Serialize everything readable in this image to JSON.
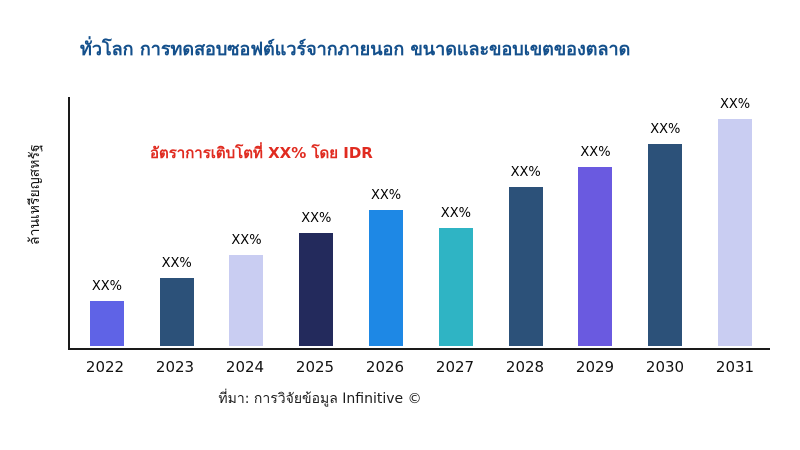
{
  "title": "ทั่วโลก การทดสอบซอฟต์แวร์จากภายนอก ขนาดและขอบเขตของตลาด",
  "y_axis_label": "ล้านเหรียญสหรัฐ",
  "annotation": {
    "text": "อัตราการเติบโตที่ XX% โดย IDR",
    "color": "#e02b20"
  },
  "caption": "ที่มา: การวิจัยข้อมูล Infinitive ©",
  "colors": {
    "title": "#14508c",
    "axis": "#1a1a1a"
  },
  "chart_data": {
    "type": "bar",
    "title": "ทั่วโลก การทดสอบซอฟต์แวร์จากภายนอก ขนาดและขอบเขตของตลาด",
    "categories": [
      "2022",
      "2023",
      "2024",
      "2025",
      "2026",
      "2027",
      "2028",
      "2029",
      "2030",
      "2031"
    ],
    "values": [
      20,
      30,
      40,
      50,
      60,
      52,
      70,
      79,
      89,
      100
    ],
    "value_labels": [
      "XX%",
      "XX%",
      "XX%",
      "XX%",
      "XX%",
      "XX%",
      "XX%",
      "XX%",
      "XX%",
      "XX%"
    ],
    "bar_colors": [
      "#5f63e6",
      "#2c5179",
      "#c9cdf2",
      "#232a5c",
      "#1e88e5",
      "#2fb4c4",
      "#2c5179",
      "#6a5ae0",
      "#2c5179",
      "#c9cdf2"
    ],
    "xlabel": "",
    "ylabel": "ล้านเหรียญสหรัฐ",
    "ylim": [
      0,
      100
    ],
    "grid": false,
    "legend": "none",
    "annotation": "อัตราการเติบโตที่ XX% โดย IDR",
    "source": "ที่มา: การวิจัยข้อมูล Infinitive ©"
  }
}
